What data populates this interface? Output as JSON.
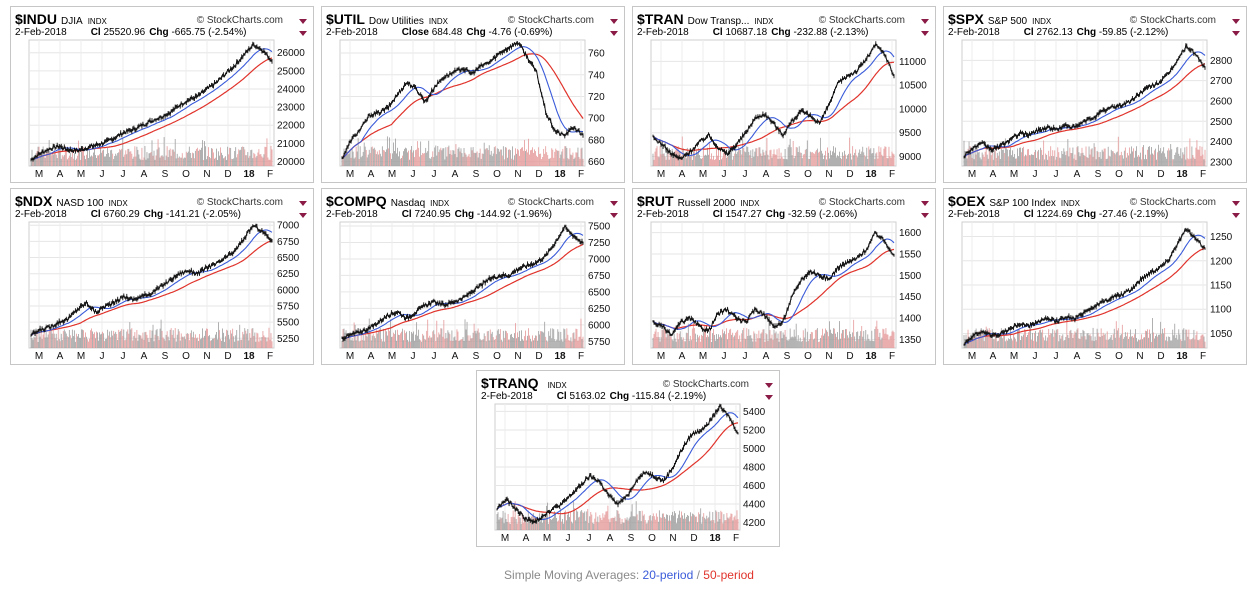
{
  "brand": "StockCharts.com",
  "footer": {
    "prefix": "Simple Moving Averages: ",
    "short": "20-period",
    "sep": " / ",
    "long": "50-period"
  },
  "colors": {
    "short_ma": "#3a5bd9",
    "long_ma": "#e0332b",
    "price": "#111111",
    "vol_up": "#9e9e9e",
    "vol_dn": "#e59a9a"
  },
  "chart_data": [
    {
      "type": "line",
      "symbol": "$INDU",
      "name": "DJIA",
      "exchange": "INDX",
      "date": "2-Feb-2018",
      "close_label": "Cl",
      "close": "25520.96",
      "chg_label": "Chg",
      "chg": "-665.75 (-2.54%)",
      "x_ticks": [
        "M",
        "A",
        "M",
        "J",
        "J",
        "A",
        "S",
        "O",
        "N",
        "D",
        "18",
        "F"
      ],
      "y_ticks": [
        20000,
        21000,
        22000,
        23000,
        24000,
        25000,
        26000
      ],
      "ylim": [
        19750,
        26700
      ],
      "series": [
        {
          "values": [
            20100,
            20450,
            20700,
            20850,
            20650,
            20600,
            20750,
            20900,
            21050,
            21300,
            21600,
            21750,
            22000,
            22250,
            22450,
            22700,
            23100,
            23400,
            23600,
            24000,
            24350,
            24850,
            25300,
            25900,
            26450,
            26150,
            25520
          ]
        }
      ]
    },
    {
      "type": "line",
      "symbol": "$UTIL",
      "name": "Dow Utilities",
      "exchange": "INDX",
      "date": "2-Feb-2018",
      "close_label": "Close",
      "close": "684.48",
      "chg_label": "Chg",
      "chg": "-4.76 (-0.69%)",
      "x_ticks": [
        "M",
        "A",
        "M",
        "J",
        "J",
        "A",
        "S",
        "O",
        "N",
        "D",
        "18",
        "F"
      ],
      "y_ticks": [
        660,
        680,
        700,
        720,
        740,
        760
      ],
      "ylim": [
        656,
        772
      ],
      "series": [
        {
          "values": [
            663,
            680,
            690,
            703,
            705,
            710,
            722,
            733,
            727,
            715,
            729,
            738,
            742,
            746,
            741,
            748,
            752,
            760,
            765,
            770,
            756,
            742,
            705,
            688,
            684,
            692,
            684
          ]
        }
      ]
    },
    {
      "type": "line",
      "symbol": "$TRAN",
      "name": "Dow Transp...",
      "exchange": "INDX",
      "date": "2-Feb-2018",
      "close_label": "Cl",
      "close": "10687.18",
      "chg_label": "Chg",
      "chg": "-232.88 (-2.13%)",
      "x_ticks": [
        "M",
        "A",
        "M",
        "J",
        "J",
        "A",
        "S",
        "O",
        "N",
        "D",
        "18",
        "F"
      ],
      "y_ticks": [
        9000,
        9500,
        10000,
        10500,
        11000
      ],
      "ylim": [
        8800,
        11450
      ],
      "series": [
        {
          "values": [
            9400,
            9250,
            9050,
            8950,
            9100,
            9300,
            9450,
            9200,
            9050,
            9250,
            9500,
            9800,
            9900,
            9700,
            9450,
            9750,
            9950,
            9850,
            9700,
            10100,
            10550,
            10700,
            10800,
            11050,
            11350,
            11150,
            10690
          ]
        }
      ]
    },
    {
      "type": "line",
      "symbol": "$SPX",
      "name": "S&P 500",
      "exchange": "INDX",
      "date": "2-Feb-2018",
      "close_label": "Cl",
      "close": "2762.13",
      "chg_label": "Chg",
      "chg": "-59.85 (-2.12%)",
      "x_ticks": [
        "M",
        "A",
        "M",
        "J",
        "J",
        "A",
        "S",
        "O",
        "N",
        "D",
        "18",
        "F"
      ],
      "y_ticks": [
        2300,
        2400,
        2500,
        2600,
        2700,
        2800
      ],
      "ylim": [
        2280,
        2900
      ],
      "series": [
        {
          "values": [
            2330,
            2370,
            2390,
            2360,
            2380,
            2410,
            2440,
            2435,
            2455,
            2470,
            2460,
            2480,
            2470,
            2500,
            2520,
            2550,
            2570,
            2580,
            2600,
            2640,
            2670,
            2690,
            2730,
            2800,
            2870,
            2830,
            2762
          ]
        }
      ]
    },
    {
      "type": "line",
      "symbol": "$NDX",
      "name": "NASD 100",
      "exchange": "INDX",
      "date": "2-Feb-2018",
      "close_label": "Cl",
      "close": "6760.29",
      "chg_label": "Chg",
      "chg": "-141.21 (-2.05%)",
      "x_ticks": [
        "M",
        "A",
        "M",
        "J",
        "J",
        "A",
        "S",
        "O",
        "N",
        "D",
        "18",
        "F"
      ],
      "y_ticks": [
        5250,
        5500,
        5750,
        6000,
        6250,
        6500,
        6750,
        7000
      ],
      "ylim": [
        5100,
        7050
      ],
      "series": [
        {
          "values": [
            5300,
            5380,
            5420,
            5500,
            5550,
            5700,
            5800,
            5650,
            5750,
            5800,
            5900,
            5850,
            5900,
            5950,
            6050,
            6150,
            6250,
            6300,
            6250,
            6350,
            6400,
            6500,
            6600,
            6800,
            7000,
            6900,
            6760
          ]
        }
      ]
    },
    {
      "type": "line",
      "symbol": "$COMPQ",
      "name": "Nasdaq",
      "exchange": "INDX",
      "date": "2-Feb-2018",
      "close_label": "Cl",
      "close": "7240.95",
      "chg_label": "Chg",
      "chg": "-144.92 (-1.96%)",
      "x_ticks": [
        "M",
        "A",
        "M",
        "J",
        "J",
        "A",
        "S",
        "O",
        "N",
        "D",
        "18",
        "F"
      ],
      "y_ticks": [
        5750,
        6000,
        6250,
        6500,
        6750,
        7000,
        7250,
        7500
      ],
      "ylim": [
        5650,
        7560
      ],
      "series": [
        {
          "values": [
            5800,
            5850,
            5900,
            5950,
            6050,
            6150,
            6200,
            6100,
            6200,
            6300,
            6350,
            6300,
            6350,
            6400,
            6500,
            6600,
            6700,
            6750,
            6750,
            6850,
            6900,
            6950,
            7050,
            7250,
            7480,
            7350,
            7240
          ]
        }
      ]
    },
    {
      "type": "line",
      "symbol": "$RUT",
      "name": "Russell 2000",
      "exchange": "INDX",
      "date": "2-Feb-2018",
      "close_label": "Cl",
      "close": "1547.27",
      "chg_label": "Chg",
      "chg": "-32.59 (-2.06%)",
      "x_ticks": [
        "M",
        "A",
        "M",
        "J",
        "J",
        "A",
        "S",
        "O",
        "N",
        "D",
        "18",
        "F"
      ],
      "y_ticks": [
        1350,
        1400,
        1450,
        1500,
        1550,
        1600
      ],
      "ylim": [
        1330,
        1625
      ],
      "series": [
        {
          "values": [
            1390,
            1380,
            1360,
            1390,
            1400,
            1380,
            1370,
            1410,
            1420,
            1400,
            1390,
            1420,
            1410,
            1380,
            1390,
            1450,
            1490,
            1510,
            1500,
            1490,
            1520,
            1530,
            1540,
            1560,
            1600,
            1580,
            1547
          ]
        }
      ]
    },
    {
      "type": "line",
      "symbol": "$OEX",
      "name": "S&P 100 Index",
      "exchange": "INDX",
      "date": "2-Feb-2018",
      "close_label": "Cl",
      "close": "1224.69",
      "chg_label": "Chg",
      "chg": "-27.46 (-2.19%)",
      "x_ticks": [
        "M",
        "A",
        "M",
        "J",
        "J",
        "A",
        "S",
        "O",
        "N",
        "D",
        "18",
        "F"
      ],
      "y_ticks": [
        1050,
        1100,
        1150,
        1200,
        1250
      ],
      "ylim": [
        1020,
        1280
      ],
      "series": [
        {
          "values": [
            1030,
            1045,
            1055,
            1045,
            1050,
            1060,
            1070,
            1065,
            1075,
            1080,
            1075,
            1085,
            1080,
            1095,
            1105,
            1115,
            1125,
            1130,
            1140,
            1160,
            1175,
            1185,
            1200,
            1235,
            1265,
            1245,
            1225
          ]
        }
      ]
    },
    {
      "type": "line",
      "symbol": "$TRANQ",
      "name": "",
      "exchange": "INDX",
      "date": "2-Feb-2018",
      "close_label": "Cl",
      "close": "5163.02",
      "chg_label": "Chg",
      "chg": "-115.84 (-2.19%)",
      "x_ticks": [
        "M",
        "A",
        "M",
        "J",
        "J",
        "A",
        "S",
        "O",
        "N",
        "D",
        "18",
        "F"
      ],
      "y_ticks": [
        4200,
        4400,
        4600,
        4800,
        5000,
        5200,
        5400
      ],
      "ylim": [
        4120,
        5480
      ],
      "series": [
        {
          "values": [
            4350,
            4450,
            4350,
            4250,
            4200,
            4280,
            4350,
            4400,
            4500,
            4600,
            4700,
            4650,
            4500,
            4400,
            4480,
            4650,
            4750,
            4700,
            4650,
            4800,
            5000,
            5150,
            5200,
            5300,
            5450,
            5350,
            5163
          ]
        }
      ]
    }
  ]
}
